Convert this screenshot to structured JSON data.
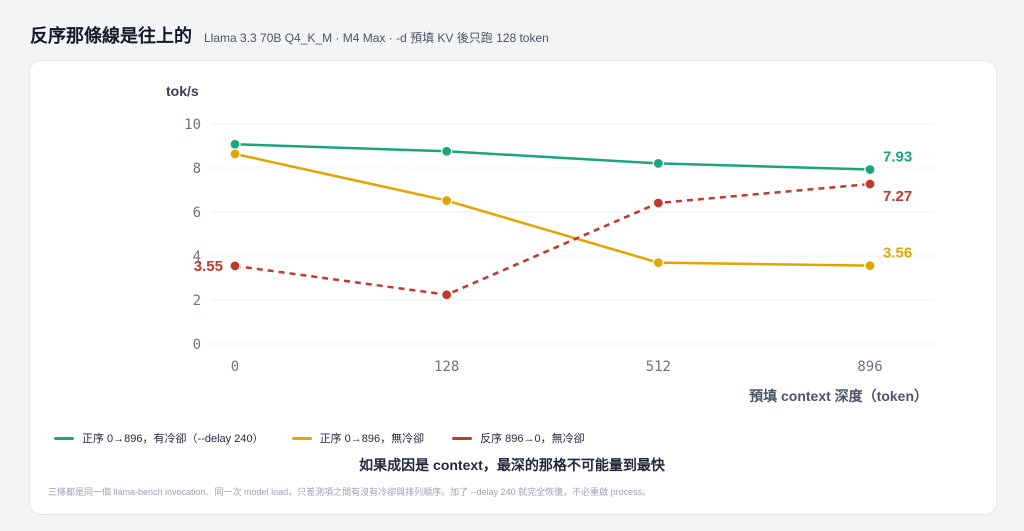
{
  "header": {
    "title": "反序那條線是往上的",
    "subtitle": "Llama 3.3 70B Q4_K_M · M4 Max · -d 預填 KV 後只跑 128 token"
  },
  "chart_data": {
    "type": "line",
    "ylabel": "tok/s",
    "xlabel": "預填 context 深度（token）",
    "categories": [
      "0",
      "128",
      "512",
      "896"
    ],
    "ylim": [
      0,
      10
    ],
    "yticks": [
      "0",
      "2",
      "4",
      "6",
      "8",
      "10"
    ],
    "grid": "horizontal",
    "legend_position": "bottom",
    "series": [
      {
        "name": "正序 0→896，有冷卻（--delay 240）",
        "color": "#1aa67a",
        "dashed": false,
        "values": [
          9.08,
          8.76,
          8.21,
          7.93
        ],
        "end_label": "7.93",
        "start_label": ""
      },
      {
        "name": "正序 0→896，無冷卻",
        "color": "#e0a500",
        "dashed": false,
        "values": [
          8.64,
          6.52,
          3.7,
          3.56
        ],
        "end_label": "3.56",
        "start_label": ""
      },
      {
        "name": "反序 896→0，無冷卻",
        "color": "#c0392b",
        "dashed": true,
        "values": [
          3.55,
          2.24,
          6.41,
          7.27
        ],
        "end_label": "7.27",
        "start_label": "3.55"
      }
    ]
  },
  "headline": "如果成因是 context，最深的那格不可能量到最快",
  "footnote": "三條都是同一個 llama-bench invocation、同一次 model load，只差測項之間有沒有冷卻與排列順序。加了 --delay 240 就完全恢復，不必重啟 process。"
}
